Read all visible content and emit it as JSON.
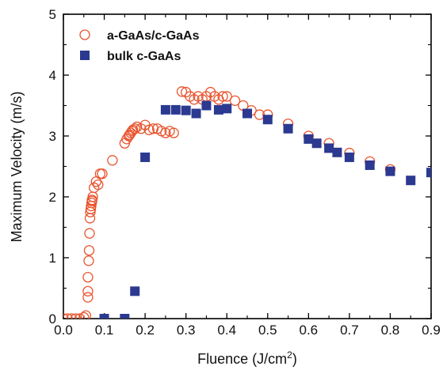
{
  "chart_data": {
    "type": "scatter",
    "xlabel": "Fluence (J/cm",
    "xlabel_sup": "2",
    "xlabel_suffix": ")",
    "ylabel": "Maximum Velocity (m/s)",
    "xlim": [
      0.0,
      0.9
    ],
    "ylim": [
      0,
      5
    ],
    "x_ticks": [
      "0.0",
      "0.1",
      "0.2",
      "0.3",
      "0.4",
      "0.5",
      "0.6",
      "0.7",
      "0.8",
      "0.9"
    ],
    "y_ticks": [
      "0",
      "1",
      "2",
      "3",
      "4",
      "5"
    ],
    "grid": false,
    "legend_position": "top-left",
    "series": [
      {
        "name": "a-GaAs/c-GaAs",
        "marker": "open-circle",
        "color": "#e8542e",
        "x": [
          0.0,
          0.01,
          0.02,
          0.03,
          0.04,
          0.05,
          0.055,
          0.06,
          0.06,
          0.06,
          0.062,
          0.063,
          0.064,
          0.065,
          0.066,
          0.067,
          0.068,
          0.069,
          0.07,
          0.07,
          0.072,
          0.075,
          0.08,
          0.085,
          0.09,
          0.095,
          0.12,
          0.15,
          0.155,
          0.16,
          0.162,
          0.165,
          0.168,
          0.17,
          0.175,
          0.18,
          0.19,
          0.2,
          0.21,
          0.22,
          0.23,
          0.24,
          0.25,
          0.26,
          0.27,
          0.29,
          0.3,
          0.31,
          0.32,
          0.33,
          0.34,
          0.35,
          0.36,
          0.37,
          0.38,
          0.39,
          0.4,
          0.42,
          0.44,
          0.46,
          0.48,
          0.5,
          0.55,
          0.6,
          0.65,
          0.7,
          0.75,
          0.8
        ],
        "y": [
          0.0,
          0.0,
          0.0,
          0.0,
          0.0,
          0.02,
          0.05,
          0.35,
          0.45,
          0.68,
          0.95,
          1.12,
          1.4,
          1.65,
          1.75,
          1.8,
          1.85,
          1.9,
          1.93,
          1.95,
          2.0,
          2.15,
          2.25,
          2.2,
          2.38,
          2.38,
          2.6,
          2.88,
          2.95,
          3.0,
          3.02,
          3.05,
          3.08,
          3.1,
          3.12,
          3.15,
          3.12,
          3.18,
          3.1,
          3.12,
          3.12,
          3.08,
          3.05,
          3.08,
          3.05,
          3.73,
          3.72,
          3.65,
          3.6,
          3.65,
          3.6,
          3.65,
          3.72,
          3.65,
          3.6,
          3.65,
          3.65,
          3.58,
          3.5,
          3.42,
          3.35,
          3.35,
          3.2,
          3.0,
          2.88,
          2.72,
          2.58,
          2.45
        ]
      },
      {
        "name": "bulk c-GaAs",
        "marker": "filled-square",
        "color": "#2b3990",
        "x": [
          0.1,
          0.15,
          0.175,
          0.2,
          0.25,
          0.275,
          0.3,
          0.325,
          0.35,
          0.38,
          0.4,
          0.45,
          0.5,
          0.55,
          0.6,
          0.62,
          0.65,
          0.67,
          0.7,
          0.75,
          0.8,
          0.85,
          0.9
        ],
        "y": [
          0.0,
          0.0,
          0.45,
          2.65,
          3.43,
          3.43,
          3.42,
          3.37,
          3.5,
          3.43,
          3.45,
          3.37,
          3.27,
          3.12,
          2.95,
          2.88,
          2.8,
          2.73,
          2.65,
          2.52,
          2.42,
          2.27,
          2.4
        ]
      }
    ]
  }
}
